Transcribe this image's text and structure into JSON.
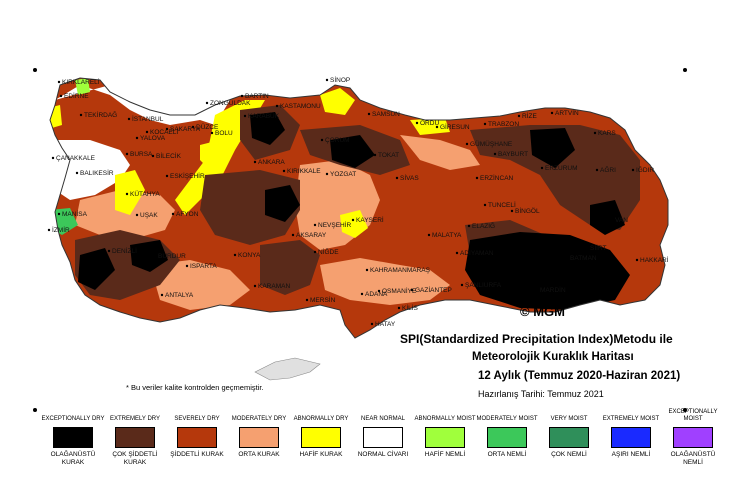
{
  "map": {
    "logo": "© MGM",
    "title": {
      "line1": "SPI(Standardized Precipitation Index)Metodu ile",
      "line2": "Meteorolojik Kuraklık Haritası",
      "line3": "12 Aylık (Temmuz 2020-Haziran 2021)",
      "line4": "Hazırlanış Tarihi: Temmuz 2021"
    },
    "note": "* Bu veriler kalite kontrolden geçmemiştir.",
    "colors": {
      "exceptional_dry": "#000000",
      "extreme_dry": "#5a2a1a",
      "severe_dry": "#b5380c",
      "moderate_dry": "#f5a070",
      "abnormal_dry": "#ffff00",
      "near_normal": "#ffffff",
      "abnormal_moist": "#a0ff3c",
      "moderate_moist": "#3cc85a",
      "very_moist": "#2f8f5a",
      "extreme_moist": "#1a2aff",
      "exceptional_moist": "#a040ff"
    },
    "cities": [
      "KIRKLARELİ",
      "EDİRNE",
      "TEKİRDAĞ",
      "İSTANBUL",
      "ÇANAKKALE",
      "BALIKESİR",
      "BURSA",
      "BİLECİK",
      "KÜTAHYA",
      "MANİSA",
      "İZMİR",
      "UŞAK",
      "AFYON",
      "DENİZLİ",
      "BURDUR",
      "ISPARTA",
      "ANTALYA",
      "KONYA",
      "KARAMAN",
      "MERSİN",
      "ANKARA",
      "KIRIKKALE",
      "ESKİŞEHİR",
      "BARTIN",
      "ZONGULDAK",
      "KASTAMONU",
      "KARABÜK",
      "SİNOP",
      "SAMSUN",
      "ÇORUM",
      "ORDU",
      "GİRESUN",
      "TRABZON",
      "ARTVİN",
      "RİZE",
      "KARS",
      "AĞRI",
      "IĞDIR",
      "ERZURUM",
      "BAYBURT",
      "GÜMÜŞHANE",
      "TOKAT",
      "SİVAS",
      "YOZGAT",
      "ERZİNCAN",
      "TUNCELİ",
      "BİNGÖL",
      "VAN",
      "HAKKARİ",
      "KAYSERİ",
      "NEVŞEHİR",
      "AKSARAY",
      "NİĞDE",
      "ADANA",
      "KAHRAMANMARAŞ",
      "GAZİANTEP",
      "ŞANLIURFA",
      "MARDİN",
      "ADIYAMAN",
      "MALATYA",
      "ELAZIĞ",
      "HATAY",
      "KİLİS",
      "OSMANİYE",
      "BATMAN",
      "SİİRT",
      "DÜZCE",
      "BOLU",
      "SAKARYA",
      "KOCAELİ",
      "YALOVA"
    ]
  },
  "legend": [
    {
      "en": "EXCEPTIONALLY DRY",
      "tr": "OLAĞANÜSTÜ KURAK",
      "color": "#000000"
    },
    {
      "en": "EXTREMELY DRY",
      "tr": "ÇOK ŞİDDETLİ KURAK",
      "color": "#5a2a1a"
    },
    {
      "en": "SEVERELY DRY",
      "tr": "ŞİDDETLİ KURAK",
      "color": "#b5380c"
    },
    {
      "en": "MODERATELY DRY",
      "tr": "ORTA KURAK",
      "color": "#f5a070"
    },
    {
      "en": "ABNORMALLY DRY",
      "tr": "HAFİF KURAK",
      "color": "#ffff00"
    },
    {
      "en": "NEAR NORMAL",
      "tr": "NORMAL CİVARI",
      "color": "#ffffff"
    },
    {
      "en": "ABNORMALLY MOIST",
      "tr": "HAFİF NEMLİ",
      "color": "#a0ff3c"
    },
    {
      "en": "MODERATELY MOIST",
      "tr": "ORTA NEMLİ",
      "color": "#3cc85a"
    },
    {
      "en": "VERY MOIST",
      "tr": "ÇOK NEMLİ",
      "color": "#2f8f5a"
    },
    {
      "en": "EXTREMELY MOIST",
      "tr": "AŞIRI NEMLİ",
      "color": "#1a2aff"
    },
    {
      "en": "EXCEPTIONALLY MOIST",
      "tr": "OLAĞANÜSTÜ NEMLİ",
      "color": "#a040ff"
    }
  ]
}
